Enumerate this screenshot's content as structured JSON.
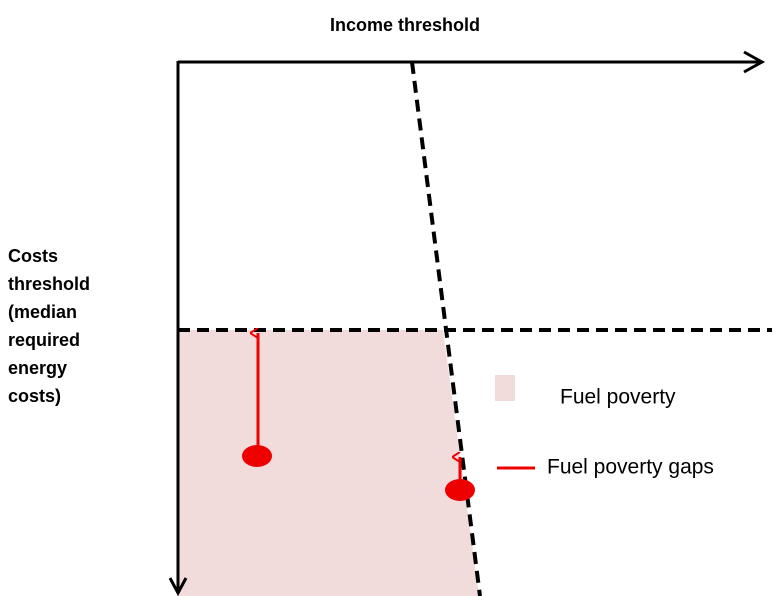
{
  "header": {
    "title": "Income threshold"
  },
  "side_label": {
    "lines": [
      "Costs",
      "threshold",
      "(median",
      "required",
      "energy",
      "costs)"
    ]
  },
  "legend": {
    "items": [
      {
        "label": "Fuel poverty"
      },
      {
        "label": "Fuel poverty gaps"
      }
    ]
  }
}
